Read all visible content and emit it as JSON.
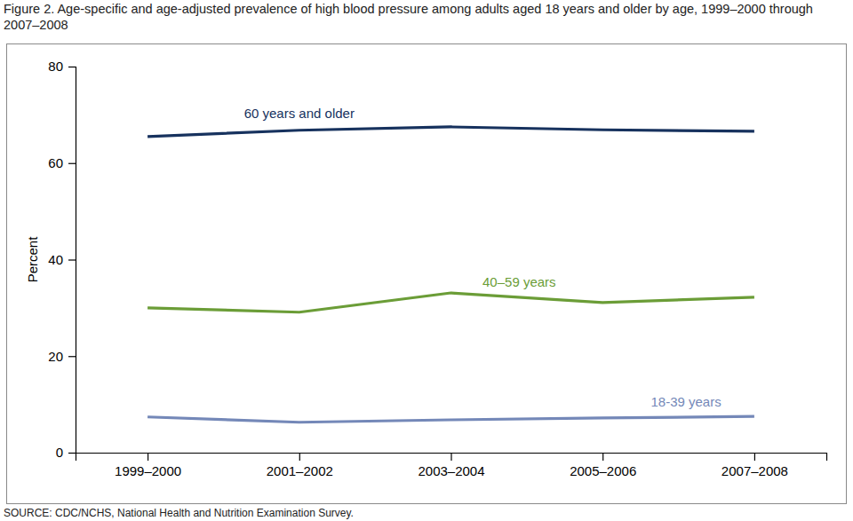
{
  "chart_data": {
    "type": "line",
    "title": "Figure 2. Age-specific and age-adjusted prevalence of high blood pressure among adults aged 18 years and older by age, 1999–2000 through 2007–2008",
    "y_label": "Percent",
    "source": "SOURCE: CDC/NCHS, National Health and Nutrition Examination Survey.",
    "categories": [
      "1999–2000",
      "2001–2002",
      "2003–2004",
      "2005–2006",
      "2007–2008"
    ],
    "series": [
      {
        "name": "60 years and older",
        "color": "#17325e",
        "values": [
          65.5,
          66.8,
          67.5,
          66.9,
          66.6
        ]
      },
      {
        "name": "40–59 years",
        "color": "#6b9d37",
        "values": [
          30.0,
          29.1,
          33.1,
          31.1,
          32.2
        ]
      },
      {
        "name": "18-39 years",
        "color": "#7488b8",
        "values": [
          7.4,
          6.3,
          6.8,
          7.2,
          7.5
        ]
      }
    ],
    "ylim": [
      0,
      80
    ],
    "yticks": [
      0,
      20,
      40,
      60,
      80
    ],
    "grid": false
  }
}
